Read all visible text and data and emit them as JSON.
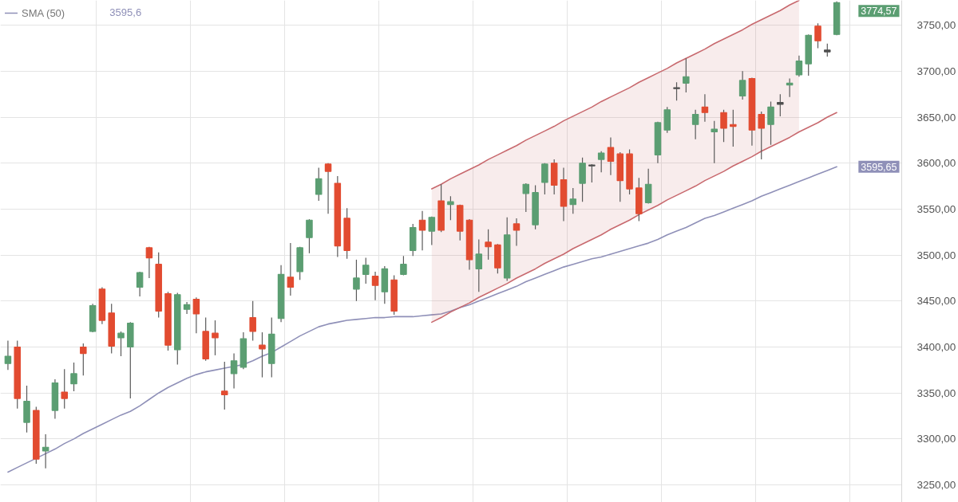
{
  "chart_data": {
    "type": "candlestick",
    "categories": [
      null,
      null,
      null,
      null,
      null,
      null,
      null,
      null,
      null,
      null,
      null,
      null,
      null,
      null,
      null,
      null,
      null,
      null,
      null,
      null,
      null,
      null,
      null,
      null,
      null,
      null,
      null,
      null,
      null,
      null,
      null,
      null,
      null,
      null,
      null,
      null,
      null,
      null,
      null,
      null,
      null,
      null,
      null,
      null,
      null,
      null,
      null,
      null,
      null,
      null,
      null,
      null,
      null,
      null,
      null,
      null,
      null,
      null,
      null,
      null,
      null,
      null,
      null,
      null,
      null,
      null,
      null,
      null,
      null,
      null,
      null,
      null,
      null,
      null,
      null,
      null,
      null,
      null,
      null,
      null,
      null,
      null,
      null,
      null,
      null,
      null,
      null,
      null,
      null
    ],
    "ohlc": [
      [
        3382,
        3407,
        3375,
        3390
      ],
      [
        3400,
        3407,
        3333,
        3344
      ],
      [
        3318,
        3358,
        3307,
        3341
      ],
      [
        3331,
        3335,
        3273,
        3278
      ],
      [
        3287,
        3305,
        3268,
        3291
      ],
      [
        3331,
        3365,
        3322,
        3361
      ],
      [
        3351,
        3376,
        3333,
        3344
      ],
      [
        3360,
        3383,
        3352,
        3371
      ],
      [
        3400,
        3404,
        3369,
        3393
      ],
      [
        3417,
        3447,
        3416,
        3445
      ],
      [
        3463,
        3465,
        3425,
        3429
      ],
      [
        3437,
        3447,
        3393,
        3401
      ],
      [
        3410,
        3417,
        3390,
        3415
      ],
      [
        3400,
        3427,
        3344,
        3426
      ],
      [
        3465,
        3482,
        3455,
        3481
      ],
      [
        3508,
        3509,
        3475,
        3497
      ],
      [
        3490,
        3503,
        3432,
        3439
      ],
      [
        3458,
        3460,
        3396,
        3402
      ],
      [
        3397,
        3459,
        3381,
        3457
      ],
      [
        3441,
        3449,
        3436,
        3446
      ],
      [
        3452,
        3454,
        3415,
        3436
      ],
      [
        3417,
        3432,
        3385,
        3387
      ],
      [
        3415,
        3429,
        3391,
        3410
      ],
      [
        3352,
        3384,
        3332,
        3348
      ],
      [
        3371,
        3393,
        3355,
        3385
      ],
      [
        3378,
        3416,
        3376,
        3409
      ],
      [
        3432,
        3450,
        3407,
        3417
      ],
      [
        3402,
        3416,
        3367,
        3398
      ],
      [
        3382,
        3432,
        3367,
        3414
      ],
      [
        3431,
        3489,
        3427,
        3479
      ],
      [
        3476,
        3513,
        3456,
        3465
      ],
      [
        3482,
        3509,
        3473,
        3508
      ],
      [
        3519,
        3539,
        3502,
        3538
      ],
      [
        3566,
        3595,
        3559,
        3583
      ],
      [
        3599,
        3600,
        3545,
        3591
      ],
      [
        3578,
        3586,
        3498,
        3510
      ],
      [
        3540,
        3551,
        3496,
        3505
      ],
      [
        3463,
        3495,
        3450,
        3475
      ],
      [
        3479,
        3497,
        3469,
        3489
      ],
      [
        3477,
        3482,
        3451,
        3467
      ],
      [
        3460,
        3488,
        3447,
        3485
      ],
      [
        3473,
        3478,
        3435,
        3439
      ],
      [
        3479,
        3499,
        3478,
        3490
      ],
      [
        3505,
        3534,
        3499,
        3530
      ],
      [
        3538,
        3548,
        3505,
        3527
      ],
      [
        3526,
        3542,
        3511,
        3541
      ],
      [
        3559,
        3577,
        3525,
        3527
      ],
      [
        3555,
        3564,
        3538,
        3558
      ],
      [
        3554,
        3555,
        3516,
        3526
      ],
      [
        3538,
        3539,
        3484,
        3495
      ],
      [
        3485,
        3517,
        3460,
        3501
      ],
      [
        3514,
        3528,
        3495,
        3509
      ],
      [
        3511,
        3512,
        3480,
        3486
      ],
      [
        3475,
        3541,
        3472,
        3522
      ],
      [
        3534,
        3540,
        3510,
        3527
      ],
      [
        3567,
        3578,
        3547,
        3577
      ],
      [
        3533,
        3576,
        3528,
        3568
      ],
      [
        3579,
        3600,
        3566,
        3599
      ],
      [
        3600,
        3604,
        3566,
        3576
      ],
      [
        3582,
        3595,
        3537,
        3553
      ],
      [
        3555,
        3573,
        3545,
        3561
      ],
      [
        3578,
        3606,
        3558,
        3600
      ],
      [
        3598,
        3599,
        3579,
        3597
      ],
      [
        3604,
        3613,
        3590,
        3611
      ],
      [
        3617,
        3628,
        3587,
        3602
      ],
      [
        3610,
        3612,
        3558,
        3581
      ],
      [
        3610,
        3615,
        3566,
        3572
      ],
      [
        3573,
        3584,
        3537,
        3545
      ],
      [
        3557,
        3594,
        3556,
        3577
      ],
      [
        3609,
        3645,
        3600,
        3644
      ],
      [
        3636,
        3661,
        3633,
        3658
      ],
      [
        3681,
        3688,
        3668,
        3682
      ],
      [
        3687,
        3714,
        3677,
        3694
      ],
      [
        3642,
        3658,
        3626,
        3653
      ],
      [
        3661,
        3675,
        3645,
        3655
      ],
      [
        3634,
        3646,
        3600,
        3637
      ],
      [
        3655,
        3658,
        3623,
        3638
      ],
      [
        3642,
        3658,
        3618,
        3640
      ],
      [
        3673,
        3700,
        3669,
        3690
      ],
      [
        3692,
        3693,
        3619,
        3636
      ],
      [
        3653,
        3656,
        3604,
        3638
      ],
      [
        3642,
        3667,
        3620,
        3661
      ],
      [
        3666,
        3675,
        3651,
        3664
      ],
      [
        3685,
        3692,
        3672,
        3687
      ],
      [
        3696,
        3717,
        3694,
        3711
      ],
      [
        3708,
        3740,
        3695,
        3739
      ],
      [
        3749,
        3752,
        3725,
        3733
      ],
      [
        3723,
        3730,
        3716,
        3721
      ],
      [
        3740,
        3776,
        3739,
        3774.57
      ]
    ],
    "colors": [
      "#5b9e72",
      "#e24b30",
      "#5b9e72",
      "#e24b30",
      "#5b9e72",
      "#5b9e72",
      "#e24b30",
      "#5b9e72",
      "#e24b30",
      "#5b9e72",
      "#e24b30",
      "#e24b30",
      "#5b9e72",
      "#5b9e72",
      "#5b9e72",
      "#e24b30",
      "#e24b30",
      "#e24b30",
      "#5b9e72",
      "#5b9e72",
      "#e24b30",
      "#e24b30",
      "#e24b30",
      "#e24b30",
      "#5b9e72",
      "#5b9e72",
      "#e24b30",
      "#e24b30",
      "#5b9e72",
      "#5b9e72",
      "#e24b30",
      "#5b9e72",
      "#5b9e72",
      "#5b9e72",
      "#e24b30",
      "#e24b30",
      "#e24b30",
      "#5b9e72",
      "#5b9e72",
      "#e24b30",
      "#5b9e72",
      "#e24b30",
      "#5b9e72",
      "#5b9e72",
      "#e24b30",
      "#5b9e72",
      "#e24b30",
      "#5b9e72",
      "#e24b30",
      "#e24b30",
      "#5b9e72",
      "#e24b30",
      "#e24b30",
      "#5b9e72",
      "#e24b30",
      "#5b9e72",
      "#5b9e72",
      "#5b9e72",
      "#e24b30",
      "#e24b30",
      "#5b9e72",
      "#5b9e72",
      "#4f4f4f",
      "#5b9e72",
      "#e24b30",
      "#e24b30",
      "#e24b30",
      "#e24b30",
      "#5b9e72",
      "#5b9e72",
      "#5b9e72",
      "#4f4f4f",
      "#5b9e72",
      "#5b9e72",
      "#e24b30",
      "#5b9e72",
      "#e24b30",
      "#e24b30",
      "#5b9e72",
      "#e24b30",
      "#e24b30",
      "#5b9e72",
      "#4f4f4f",
      "#5b9e72",
      "#5b9e72",
      "#5b9e72",
      "#e24b30",
      "#4f4f4f",
      "#5b9e72"
    ],
    "series": [
      {
        "name": "SMA (50)",
        "type": "line",
        "color": "#8f90b8",
        "values": [
          3264,
          3269,
          3274,
          3279,
          3284,
          3289,
          3295,
          3300,
          3306,
          3311,
          3316,
          3321,
          3326,
          3330,
          3336,
          3343,
          3350,
          3356,
          3361,
          3366,
          3370,
          3373,
          3375,
          3377,
          3379,
          3381,
          3385,
          3390,
          3394,
          3400,
          3406,
          3412,
          3417,
          3422,
          3425,
          3427,
          3429,
          3430,
          3431,
          3432,
          3432,
          3433,
          3433,
          3433,
          3434,
          3435,
          3436,
          3439,
          3443,
          3446,
          3450,
          3454,
          3458,
          3462,
          3466,
          3471,
          3475,
          3479,
          3483,
          3487,
          3490,
          3493,
          3496,
          3498,
          3501,
          3504,
          3507,
          3510,
          3513,
          3517,
          3522,
          3526,
          3530,
          3535,
          3540,
          3543,
          3547,
          3551,
          3555,
          3559,
          3564,
          3568,
          3572,
          3576,
          3580,
          3584,
          3588,
          3592,
          3596
        ]
      },
      {
        "type": "line",
        "color": "#c8696e",
        "values": [
          null,
          null,
          null,
          null,
          null,
          null,
          null,
          null,
          null,
          null,
          null,
          null,
          null,
          null,
          null,
          null,
          null,
          null,
          null,
          null,
          null,
          null,
          null,
          null,
          null,
          null,
          null,
          null,
          null,
          null,
          null,
          null,
          null,
          null,
          null,
          null,
          null,
          null,
          null,
          null,
          null,
          null,
          null,
          null,
          null,
          3572,
          3577,
          3583,
          3588,
          3593,
          3598,
          3604,
          3609,
          3614,
          3619,
          3625,
          3630,
          3635,
          3640,
          3646,
          3651,
          3656,
          3661,
          3667,
          3672,
          3677,
          3682,
          3688,
          3693,
          3698,
          3703,
          3709,
          3714,
          3719,
          3724,
          3730,
          3735,
          3740,
          3745,
          3751,
          3756,
          3761,
          3766,
          3772,
          3777,
          null,
          null,
          null,
          null
        ],
        "lower": [
          null,
          null,
          null,
          null,
          null,
          null,
          null,
          null,
          null,
          null,
          null,
          null,
          null,
          null,
          null,
          null,
          null,
          null,
          null,
          null,
          null,
          null,
          null,
          null,
          null,
          null,
          null,
          null,
          null,
          null,
          null,
          null,
          null,
          null,
          null,
          null,
          null,
          null,
          null,
          null,
          null,
          null,
          null,
          null,
          null,
          3427,
          3432,
          3438,
          3443,
          3448,
          3454,
          3459,
          3464,
          3469,
          3475,
          3480,
          3485,
          3491,
          3496,
          3501,
          3507,
          3512,
          3517,
          3522,
          3528,
          3533,
          3538,
          3544,
          3549,
          3554,
          3560,
          3565,
          3570,
          3575,
          3581,
          3586,
          3591,
          3597,
          3602,
          3607,
          3613,
          3618,
          3623,
          3628,
          3634,
          null,
          null,
          null,
          null
        ],
        "upper": [
          null,
          null,
          null,
          null,
          null,
          null,
          null,
          null,
          null,
          null,
          null,
          null,
          null,
          null,
          null,
          null,
          null,
          null,
          null,
          null,
          null,
          null,
          null,
          null,
          null,
          null,
          null,
          null,
          null,
          null,
          null,
          null,
          null,
          null,
          null,
          null,
          null,
          null,
          null,
          null,
          null,
          null,
          null,
          null,
          null,
          3572,
          3577,
          3583,
          3588,
          3593,
          3598,
          3604,
          3609,
          3614,
          3619,
          3625,
          3630,
          3635,
          3640,
          3646,
          3651,
          3656,
          3661,
          3667,
          3672,
          3677,
          3682,
          3688,
          3693,
          3698,
          3703,
          3709,
          3714,
          3719,
          3724,
          3730,
          3735,
          3740,
          3745,
          3751,
          3756,
          3761,
          3766,
          3772,
          3777,
          null,
          null,
          null,
          null
        ]
      },
      {
        "type": "line",
        "color": "#c8696e",
        "values": [
          null,
          null,
          null,
          null,
          null,
          null,
          null,
          null,
          null,
          null,
          null,
          null,
          null,
          null,
          null,
          null,
          null,
          null,
          null,
          null,
          null,
          null,
          null,
          null,
          null,
          null,
          null,
          null,
          null,
          null,
          null,
          null,
          null,
          null,
          null,
          null,
          null,
          null,
          null,
          null,
          null,
          null,
          null,
          null,
          null,
          3427,
          3432,
          3438,
          3443,
          3448,
          3454,
          3459,
          3464,
          3469,
          3475,
          3480,
          3485,
          3491,
          3496,
          3501,
          3507,
          3512,
          3517,
          3522,
          3528,
          3533,
          3538,
          3544,
          3549,
          3554,
          3560,
          3565,
          3570,
          3575,
          3581,
          3586,
          3591,
          3597,
          3602,
          3607,
          3613,
          3618,
          3623,
          3628,
          3634,
          3639,
          3644,
          3650,
          3655
        ]
      }
    ],
    "ylim": [
      3231,
      3777
    ],
    "yticks": [
      {
        "value": 3250,
        "label": "3250,00"
      },
      {
        "value": 3300,
        "label": "3300,00"
      },
      {
        "value": 3350,
        "label": "3350,00"
      },
      {
        "value": 3400,
        "label": "3400,00"
      },
      {
        "value": 3450,
        "label": "3450,00"
      },
      {
        "value": 3500,
        "label": "3500,00"
      },
      {
        "value": 3550,
        "label": "3550,00"
      },
      {
        "value": 3600,
        "label": "3600,00"
      },
      {
        "value": 3650,
        "label": "3650,00"
      },
      {
        "value": 3700,
        "label": "3700,00"
      },
      {
        "value": 3750,
        "label": "3750,00"
      }
    ],
    "tick_labels": "y",
    "grid": true,
    "legend": "top left",
    "annotations": [
      "3595,6",
      "3774,57",
      "3595,65"
    ]
  }
}
